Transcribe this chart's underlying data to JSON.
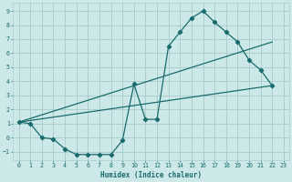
{
  "xlabel": "Humidex (Indice chaleur)",
  "xlim": [
    -0.5,
    23.5
  ],
  "ylim": [
    -1.6,
    9.6
  ],
  "xticks": [
    0,
    1,
    2,
    3,
    4,
    5,
    6,
    7,
    8,
    9,
    10,
    11,
    12,
    13,
    14,
    15,
    16,
    17,
    18,
    19,
    20,
    21,
    22,
    23
  ],
  "yticks": [
    -1,
    0,
    1,
    2,
    3,
    4,
    5,
    6,
    7,
    8,
    9
  ],
  "bg_color": "#cde8e8",
  "grid_color": "#aacfcf",
  "line_color": "#1a6b6b",
  "line1_x": [
    0,
    1,
    2,
    3,
    4,
    5,
    6,
    7,
    8,
    9,
    10,
    11,
    12,
    13,
    14,
    15,
    16,
    17,
    18,
    19,
    20,
    21,
    22
  ],
  "line1_y": [
    1.1,
    1.0,
    0.0,
    -0.1,
    -0.8,
    -1.2,
    -1.2,
    -1.2,
    -1.2,
    -0.2,
    3.8,
    1.3,
    1.3,
    6.5,
    7.5,
    8.5,
    9.0,
    8.2,
    7.5,
    6.8,
    5.5,
    4.8,
    3.7
  ],
  "line2_x": [
    0,
    22
  ],
  "line2_y": [
    1.1,
    3.7
  ],
  "line3_x": [
    0,
    22
  ],
  "line3_y": [
    1.1,
    6.8
  ]
}
